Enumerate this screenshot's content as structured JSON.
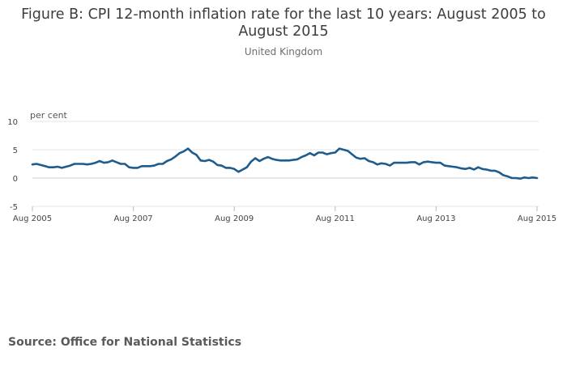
{
  "title": "Figure B: CPI 12-month inflation rate for the last 10 years: August 2005 to August 2015",
  "subtitle": "United Kingdom",
  "source": "Source: Office for National Statistics",
  "colors": {
    "line": "#1f5c8e",
    "grid": "#e6e6e6",
    "axis": "#bbbbbb"
  },
  "chart_data": {
    "type": "line",
    "ylabel": "per cent",
    "ylim": [
      -5,
      10
    ],
    "yticks": [
      10,
      5,
      0,
      -5
    ],
    "xticks": [
      {
        "label": "Aug 2005",
        "index": 0
      },
      {
        "label": "Aug 2007",
        "index": 24
      },
      {
        "label": "Aug 2009",
        "index": 48
      },
      {
        "label": "Aug 2011",
        "index": 72
      },
      {
        "label": "Aug 2013",
        "index": 96
      },
      {
        "label": "Aug 2015",
        "index": 120
      }
    ],
    "series": [
      {
        "name": "CPI 12-month inflation rate",
        "start": "Aug 2005",
        "frequency": "monthly",
        "values": [
          2.4,
          2.5,
          2.3,
          2.1,
          1.9,
          1.9,
          2.0,
          1.8,
          2.0,
          2.2,
          2.5,
          2.5,
          2.5,
          2.4,
          2.5,
          2.7,
          3.0,
          2.7,
          2.8,
          3.1,
          2.8,
          2.5,
          2.5,
          1.9,
          1.8,
          1.8,
          2.1,
          2.1,
          2.1,
          2.2,
          2.5,
          2.5,
          3.0,
          3.3,
          3.8,
          4.4,
          4.7,
          5.2,
          4.5,
          4.1,
          3.1,
          3.0,
          3.2,
          2.9,
          2.3,
          2.2,
          1.8,
          1.8,
          1.6,
          1.1,
          1.5,
          1.9,
          2.9,
          3.5,
          3.0,
          3.4,
          3.7,
          3.4,
          3.2,
          3.1,
          3.1,
          3.1,
          3.2,
          3.3,
          3.7,
          4.0,
          4.4,
          4.0,
          4.5,
          4.5,
          4.2,
          4.4,
          4.5,
          5.2,
          5.0,
          4.8,
          4.2,
          3.6,
          3.4,
          3.5,
          3.0,
          2.8,
          2.4,
          2.6,
          2.5,
          2.2,
          2.7,
          2.7,
          2.7,
          2.7,
          2.8,
          2.8,
          2.4,
          2.8,
          2.9,
          2.8,
          2.7,
          2.7,
          2.2,
          2.1,
          2.0,
          1.9,
          1.7,
          1.6,
          1.8,
          1.5,
          1.9,
          1.6,
          1.5,
          1.3,
          1.3,
          1.0,
          0.5,
          0.3,
          0.0,
          0.0,
          -0.1,
          0.1,
          0.0,
          0.1,
          0.0
        ]
      }
    ]
  }
}
